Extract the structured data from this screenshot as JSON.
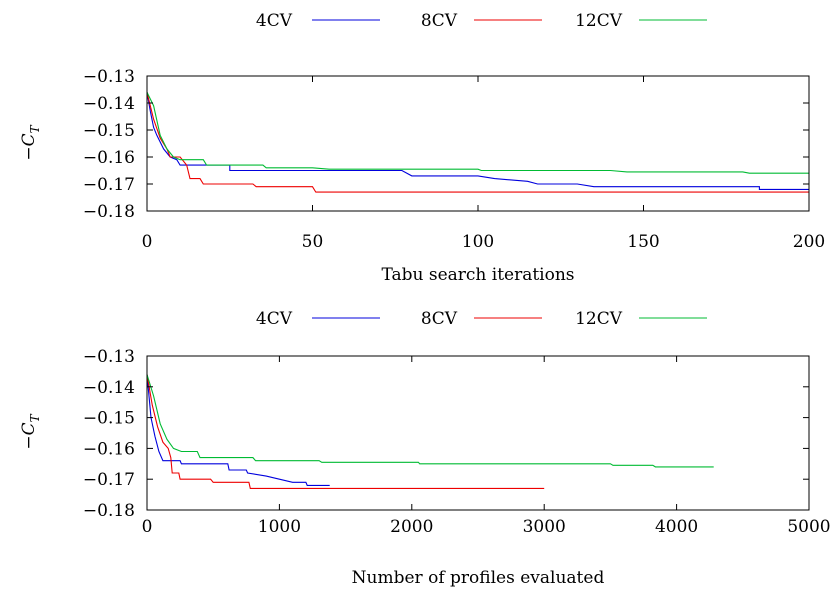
{
  "chart_data": [
    {
      "type": "line",
      "xlabel": "Tabu search iterations",
      "ylabel": "−C_T",
      "xlim": [
        0,
        200
      ],
      "ylim": [
        -0.18,
        -0.13
      ],
      "xticks": [
        0,
        50,
        100,
        150,
        200
      ],
      "xtick_labels": [
        "0",
        "50",
        "100",
        "150",
        "200"
      ],
      "yticks": [
        -0.13,
        -0.14,
        -0.15,
        -0.16,
        -0.17,
        -0.18
      ],
      "ytick_labels": [
        "−0.13",
        "−0.14",
        "−0.15",
        "−0.16",
        "−0.17",
        "−0.18"
      ],
      "legend_position": "top",
      "grid": false,
      "series": [
        {
          "name": "4CV",
          "color": "#0000dd",
          "points": [
            [
              0,
              -0.136
            ],
            [
              1,
              -0.143
            ],
            [
              2,
              -0.149
            ],
            [
              3,
              -0.152
            ],
            [
              5,
              -0.157
            ],
            [
              7,
              -0.16
            ],
            [
              9,
              -0.161
            ],
            [
              10,
              -0.163
            ],
            [
              25,
              -0.163
            ],
            [
              25,
              -0.165
            ],
            [
              77,
              -0.165
            ],
            [
              80,
              -0.167
            ],
            [
              100,
              -0.167
            ],
            [
              105,
              -0.168
            ],
            [
              115,
              -0.169
            ],
            [
              118,
              -0.17
            ],
            [
              130,
              -0.17
            ],
            [
              135,
              -0.171
            ],
            [
              185,
              -0.171
            ],
            [
              185,
              -0.172
            ],
            [
              200,
              -0.172
            ]
          ]
        },
        {
          "name": "8CV",
          "color": "#ee0000",
          "points": [
            [
              0,
              -0.136
            ],
            [
              2,
              -0.146
            ],
            [
              4,
              -0.153
            ],
            [
              6,
              -0.157
            ],
            [
              7,
              -0.16
            ],
            [
              10,
              -0.16
            ],
            [
              12,
              -0.163
            ],
            [
              13,
              -0.168
            ],
            [
              16,
              -0.168
            ],
            [
              17,
              -0.17
            ],
            [
              32,
              -0.17
            ],
            [
              33,
              -0.171
            ],
            [
              50,
              -0.171
            ],
            [
              51,
              -0.173
            ],
            [
              200,
              -0.173
            ]
          ]
        },
        {
          "name": "12CV",
          "color": "#00bb33",
          "points": [
            [
              0,
              -0.136
            ],
            [
              2,
              -0.141
            ],
            [
              4,
              -0.152
            ],
            [
              6,
              -0.157
            ],
            [
              8,
              -0.16
            ],
            [
              10,
              -0.161
            ],
            [
              17,
              -0.161
            ],
            [
              18,
              -0.163
            ],
            [
              35,
              -0.163
            ],
            [
              36,
              -0.164
            ],
            [
              50,
              -0.164
            ],
            [
              55,
              -0.1645
            ],
            [
              100,
              -0.1645
            ],
            [
              101,
              -0.165
            ],
            [
              140,
              -0.165
            ],
            [
              145,
              -0.1655
            ],
            [
              180,
              -0.1655
            ],
            [
              182,
              -0.166
            ],
            [
              200,
              -0.166
            ]
          ]
        }
      ]
    },
    {
      "type": "line",
      "xlabel": "Number of profiles evaluated",
      "ylabel": "−C_T",
      "xlim": [
        0,
        5000
      ],
      "ylim": [
        -0.18,
        -0.13
      ],
      "xticks": [
        0,
        1000,
        2000,
        3000,
        4000,
        5000
      ],
      "xtick_labels": [
        "0",
        "1000",
        "2000",
        "3000",
        "4000",
        "5000"
      ],
      "yticks": [
        -0.13,
        -0.14,
        -0.15,
        -0.16,
        -0.17,
        -0.18
      ],
      "ytick_labels": [
        "−0.13",
        "−0.14",
        "−0.15",
        "−0.16",
        "−0.17",
        "−0.18"
      ],
      "legend_position": "top",
      "grid": false,
      "series": [
        {
          "name": "4CV",
          "color": "#0000dd",
          "points": [
            [
              0,
              -0.136
            ],
            [
              30,
              -0.15
            ],
            [
              60,
              -0.156
            ],
            [
              90,
              -0.161
            ],
            [
              120,
              -0.164
            ],
            [
              250,
              -0.164
            ],
            [
              260,
              -0.165
            ],
            [
              610,
              -0.165
            ],
            [
              620,
              -0.167
            ],
            [
              750,
              -0.167
            ],
            [
              760,
              -0.168
            ],
            [
              900,
              -0.169
            ],
            [
              1000,
              -0.17
            ],
            [
              1100,
              -0.171
            ],
            [
              1200,
              -0.171
            ],
            [
              1210,
              -0.172
            ],
            [
              1380,
              -0.172
            ]
          ]
        },
        {
          "name": "8CV",
          "color": "#ee0000",
          "points": [
            [
              0,
              -0.136
            ],
            [
              40,
              -0.146
            ],
            [
              80,
              -0.153
            ],
            [
              120,
              -0.158
            ],
            [
              160,
              -0.16
            ],
            [
              180,
              -0.163
            ],
            [
              190,
              -0.168
            ],
            [
              240,
              -0.168
            ],
            [
              250,
              -0.17
            ],
            [
              480,
              -0.17
            ],
            [
              500,
              -0.171
            ],
            [
              770,
              -0.171
            ],
            [
              780,
              -0.173
            ],
            [
              3000,
              -0.173
            ]
          ]
        },
        {
          "name": "12CV",
          "color": "#00bb33",
          "points": [
            [
              0,
              -0.136
            ],
            [
              50,
              -0.143
            ],
            [
              100,
              -0.152
            ],
            [
              150,
              -0.157
            ],
            [
              200,
              -0.16
            ],
            [
              260,
              -0.161
            ],
            [
              380,
              -0.161
            ],
            [
              400,
              -0.163
            ],
            [
              800,
              -0.163
            ],
            [
              820,
              -0.164
            ],
            [
              1300,
              -0.164
            ],
            [
              1320,
              -0.1645
            ],
            [
              2050,
              -0.1645
            ],
            [
              2060,
              -0.165
            ],
            [
              3500,
              -0.165
            ],
            [
              3520,
              -0.1655
            ],
            [
              3820,
              -0.1655
            ],
            [
              3840,
              -0.166
            ],
            [
              4280,
              -0.166
            ]
          ]
        }
      ]
    }
  ]
}
